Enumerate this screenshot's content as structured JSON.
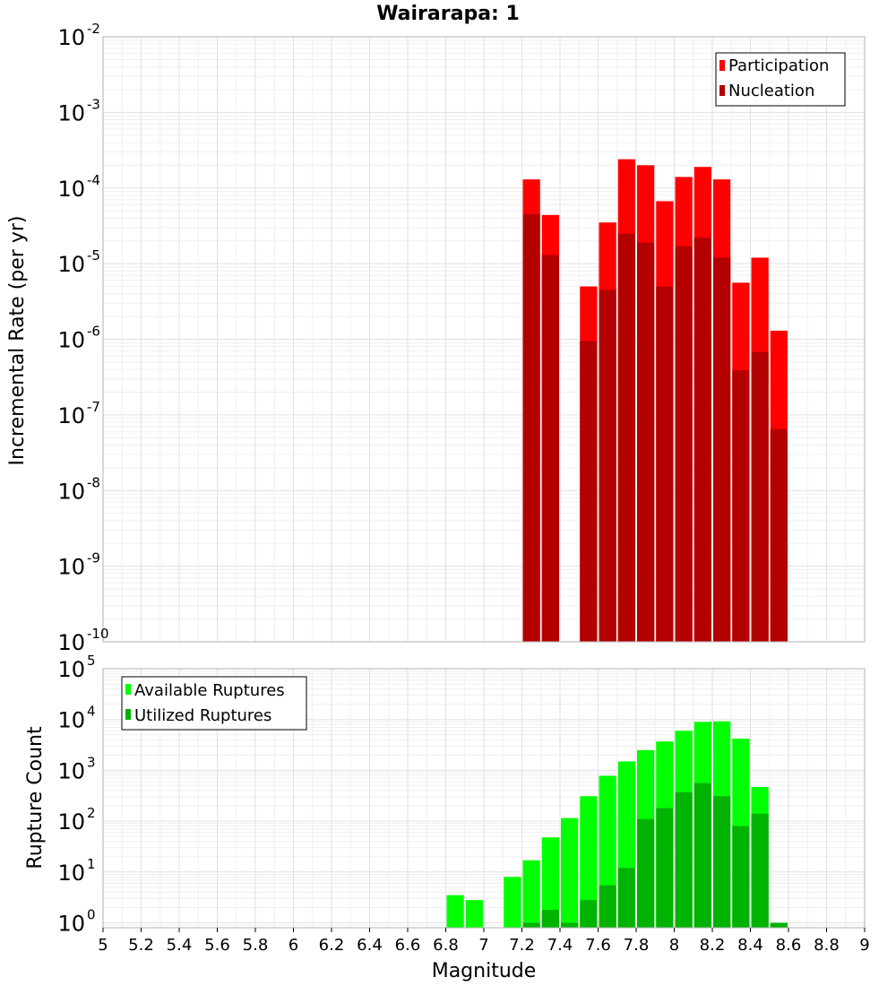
{
  "chart_data": {
    "title": "Wairarapa: 1",
    "xlabel": "Magnitude",
    "x_ticks": [
      "5",
      "5.2",
      "5.4",
      "5.6",
      "5.8",
      "6",
      "6.2",
      "6.4",
      "6.6",
      "6.8",
      "7",
      "7.2",
      "7.4",
      "7.6",
      "7.8",
      "8",
      "8.2",
      "8.4",
      "8.6",
      "8.8",
      "9"
    ],
    "xlim": [
      5,
      9
    ],
    "bin_width": 0.1,
    "panels": [
      {
        "type": "bar",
        "ylabel": "Incremental Rate (per yr)",
        "yscale": "log",
        "ylim": [
          1e-10,
          0.01
        ],
        "y_exponents": [
          "-10",
          "-9",
          "-8",
          "-7",
          "-6",
          "-5",
          "-4",
          "-3",
          "-2"
        ],
        "legend": "top-right",
        "grid": true,
        "series": [
          {
            "name": "Participation",
            "color": "#ff0000",
            "x": [
              7.25,
              7.35,
              7.55,
              7.65,
              7.75,
              7.85,
              7.95,
              8.05,
              8.15,
              8.25,
              8.35,
              8.45,
              8.55
            ],
            "values": [
              0.00013,
              4.4e-05,
              5e-06,
              3.5e-05,
              0.00024,
              0.0002,
              6.7e-05,
              0.00014,
              0.00019,
              0.00013,
              5.6e-06,
              1.2e-05,
              1.3e-06
            ]
          },
          {
            "name": "Nucleation",
            "color": "#b30000",
            "x": [
              7.25,
              7.35,
              7.55,
              7.65,
              7.75,
              7.85,
              7.95,
              8.05,
              8.15,
              8.25,
              8.35,
              8.45,
              8.55
            ],
            "values": [
              4.5e-05,
              1.3e-05,
              9.5e-07,
              4.5e-06,
              2.5e-05,
              1.9e-05,
              5e-06,
              1.7e-05,
              2.2e-05,
              1.2e-05,
              3.9e-07,
              6.8e-07,
              6.5e-08
            ]
          }
        ]
      },
      {
        "type": "bar",
        "ylabel": "Rupture Count",
        "yscale": "log",
        "ylim": [
          0.8,
          100000.0
        ],
        "y_exponents": [
          "0",
          "1",
          "2",
          "3",
          "4",
          "5"
        ],
        "legend": "top-left",
        "grid": true,
        "series": [
          {
            "name": "Available Ruptures",
            "color": "#00ff00",
            "x": [
              6.85,
              6.95,
              7.15,
              7.25,
              7.35,
              7.45,
              7.55,
              7.65,
              7.75,
              7.85,
              7.95,
              8.05,
              8.15,
              8.25,
              8.35,
              8.45,
              8.55
            ],
            "values": [
              3.5,
              2.8,
              8,
              17,
              48,
              115,
              310,
              780,
              1500,
              2500,
              3700,
              6000,
              9000,
              9200,
              4200,
              470,
              1
            ]
          },
          {
            "name": "Utilized Ruptures",
            "color": "#00b300",
            "x": [
              7.25,
              7.35,
              7.45,
              7.55,
              7.65,
              7.75,
              7.85,
              7.95,
              8.05,
              8.15,
              8.25,
              8.35,
              8.45,
              8.55
            ],
            "values": [
              1,
              1.8,
              1,
              2.8,
              5.5,
              12,
              110,
              180,
              370,
              560,
              310,
              80,
              140,
              1
            ]
          }
        ]
      }
    ]
  }
}
